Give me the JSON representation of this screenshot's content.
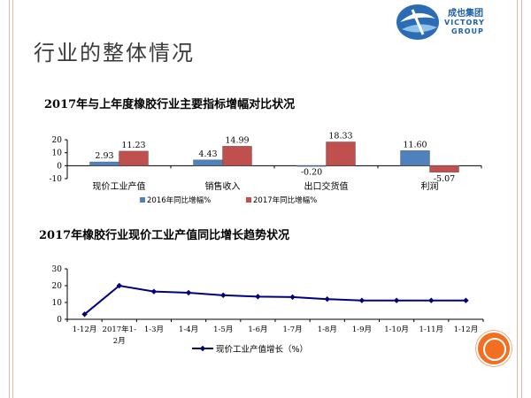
{
  "page": {
    "title": "行业的整体情况"
  },
  "logo": {
    "cn": "成也集团",
    "en_line1": "VICTORY",
    "en_line2": "GROUP"
  },
  "colors": {
    "series_2016": "#4f81bd",
    "series_2017": "#c0504d",
    "line": "#000080"
  },
  "chart_data": [
    {
      "type": "bar",
      "title": "2017年与上年度橡胶行业主要指标增幅对比状况",
      "categories": [
        "现价工业产值",
        "销售收入",
        "出口交货值",
        "利润"
      ],
      "series": [
        {
          "name": "2016年同比增幅%",
          "values": [
            2.93,
            4.43,
            -0.2,
            11.6
          ],
          "labels": [
            "2.93",
            "4.43",
            "-0.20",
            "11.60"
          ]
        },
        {
          "name": "2017年同比增幅%",
          "values": [
            11.23,
            14.99,
            18.33,
            -5.07
          ],
          "labels": [
            "11.23",
            "14.99",
            "18.33",
            "-5.07"
          ]
        }
      ],
      "yticks": [
        "20",
        "10",
        "0",
        "-10"
      ],
      "ylim": [
        -10,
        20
      ],
      "legend": "bottom"
    },
    {
      "type": "line",
      "title": "2017年橡胶行业现价工业产值同比增长趋势状况",
      "x": [
        "1-12月",
        "2017年1-2月",
        "1-3月",
        "1-4月",
        "1-5月",
        "1-6月",
        "1-7月",
        "1-8月",
        "1-9月",
        "1-10月",
        "1-11月",
        "1-12月"
      ],
      "x_tick_lines": [
        [
          "1-12月"
        ],
        [
          "2017年1-",
          "2月"
        ],
        [
          "1-3月"
        ],
        [
          "1-4月"
        ],
        [
          "1-5月"
        ],
        [
          "1-6月"
        ],
        [
          "1-7月"
        ],
        [
          "1-8月"
        ],
        [
          "1-9月"
        ],
        [
          "1-10月"
        ],
        [
          "1-11月"
        ],
        [
          "1-12月"
        ]
      ],
      "series": [
        {
          "name": "现价工业产值增长（%）",
          "values": [
            3.0,
            20.0,
            16.5,
            15.8,
            14.3,
            13.5,
            13.2,
            12.0,
            11.2,
            11.2,
            11.2,
            11.2
          ]
        }
      ],
      "yticks": [
        "30",
        "20",
        "10",
        "0"
      ],
      "ylim": [
        0,
        30
      ],
      "grid": false,
      "legend": "bottom"
    }
  ]
}
